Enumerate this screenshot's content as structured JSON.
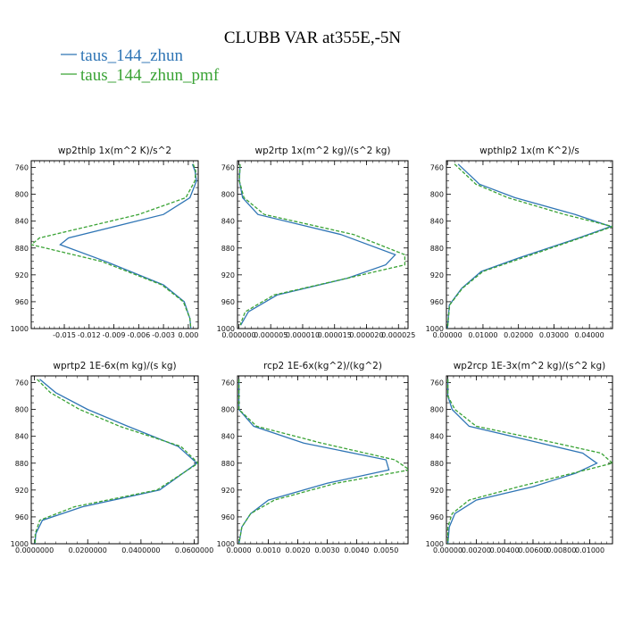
{
  "figure": {
    "title": "CLUBB VAR at355E,-5N",
    "legend": [
      {
        "label": "taus_144_zhun",
        "color": "#2f75b5"
      },
      {
        "label": "taus_144_zhun_pmf",
        "color": "#3aa335"
      }
    ]
  },
  "chart_data": [
    {
      "type": "line",
      "title": "wp2thlp   1x(m^2 K)/s^2",
      "xlim": [
        -0.019,
        0.0012
      ],
      "ylim": [
        1000,
        750
      ],
      "xticks": [
        -0.015,
        -0.012,
        -0.009,
        -0.006,
        -0.003,
        0.0
      ],
      "xticklabels": [
        "-0.015",
        "-0.012",
        "-0.009",
        "-0.006",
        "-0.003",
        "0.000"
      ],
      "yticks": [
        760,
        800,
        840,
        880,
        920,
        960,
        1000
      ],
      "y": [
        755,
        765,
        780,
        805,
        830,
        865,
        875,
        900,
        935,
        960,
        985,
        1000
      ],
      "series": [
        {
          "name": "taus_144_zhun",
          "x": [
            0.0005,
            0.0008,
            0.001,
            0.0002,
            -0.003,
            -0.0145,
            -0.0155,
            -0.01,
            -0.003,
            -0.0005,
            0.0002,
            0.0003
          ]
        },
        {
          "name": "taus_144_zhun_pmf",
          "x": [
            0.0006,
            0.0009,
            0.0008,
            -0.0003,
            -0.006,
            -0.018,
            -0.019,
            -0.0105,
            -0.0032,
            -0.0006,
            0.0002,
            0.0003
          ]
        }
      ]
    },
    {
      "type": "line",
      "title": "wp2rtp   1x(m^2 kg)/(s^2 kg)",
      "xlim": [
        -2e-07,
        2.65e-05
      ],
      "ylim": [
        1000,
        750
      ],
      "xticks": [
        0.0,
        5e-06,
        1e-05,
        1.5e-05,
        2e-05,
        2.5e-05
      ],
      "xticklabels": [
        "0.000000",
        "0.000005",
        "0.000010",
        "0.000015",
        "0.000020",
        "0.000025"
      ],
      "yticks": [
        760,
        800,
        840,
        880,
        920,
        960,
        1000
      ],
      "y": [
        755,
        780,
        805,
        830,
        860,
        890,
        905,
        925,
        950,
        975,
        995
      ],
      "series": [
        {
          "name": "taus_144_zhun",
          "x": [
            2e-07,
            1e-07,
            6e-07,
            3e-06,
            1.6e-05,
            2.45e-05,
            2.3e-05,
            1.7e-05,
            6e-06,
            1.5e-06,
            3e-07
          ]
        },
        {
          "name": "taus_144_zhun_pmf",
          "x": [
            2e-07,
            1e-07,
            8e-07,
            4e-06,
            1.8e-05,
            2.6e-05,
            2.6e-05,
            1.7e-05,
            5.5e-06,
            1e-06,
            2e-07
          ]
        }
      ]
    },
    {
      "type": "line",
      "title": "wpthlp2   1x(m K^2)/s",
      "xlim": [
        -0.0003,
        0.0465
      ],
      "ylim": [
        1000,
        750
      ],
      "xticks": [
        0.0,
        0.01,
        0.02,
        0.03,
        0.04
      ],
      "xticklabels": [
        "0.00000",
        "0.01000",
        "0.02000",
        "0.03000",
        "0.04000"
      ],
      "yticks": [
        760,
        800,
        840,
        880,
        920,
        960,
        1000
      ],
      "y": [
        755,
        765,
        785,
        805,
        830,
        848,
        865,
        895,
        915,
        940,
        965,
        1000
      ],
      "series": [
        {
          "name": "taus_144_zhun",
          "x": [
            0.003,
            0.005,
            0.009,
            0.019,
            0.036,
            0.046,
            0.037,
            0.02,
            0.0095,
            0.004,
            0.0005,
            0.0
          ]
        },
        {
          "name": "taus_144_zhun_pmf",
          "x": [
            0.002,
            0.004,
            0.008,
            0.017,
            0.033,
            0.0465,
            0.0375,
            0.021,
            0.01,
            0.0042,
            0.0006,
            0.0
          ]
        }
      ]
    },
    {
      "type": "line",
      "title": "wprtp2   1E-6x(m kg)/(s kg)",
      "xlim": [
        -0.0012,
        0.0615
      ],
      "ylim": [
        1000,
        750
      ],
      "xticks": [
        0.0,
        0.02,
        0.04,
        0.06
      ],
      "xticklabels": [
        "0.0000000",
        "0.0200000",
        "0.0400000",
        "0.0600000"
      ],
      "yticks": [
        760,
        800,
        840,
        880,
        920,
        960,
        1000
      ],
      "y": [
        755,
        775,
        800,
        825,
        855,
        880,
        920,
        945,
        965,
        985,
        1000
      ],
      "series": [
        {
          "name": "taus_144_zhun",
          "x": [
            0.002,
            0.008,
            0.02,
            0.035,
            0.054,
            0.061,
            0.047,
            0.018,
            0.003,
            0.0005,
            0.0002
          ]
        },
        {
          "name": "taus_144_zhun_pmf",
          "x": [
            0.001,
            0.006,
            0.017,
            0.032,
            0.055,
            0.0615,
            0.046,
            0.015,
            0.002,
            0.0003,
            0.0002
          ]
        }
      ]
    },
    {
      "type": "line",
      "title": "rcp2   1E-6x(kg^2)/(kg^2)",
      "xlim": [
        -5e-05,
        0.00575
      ],
      "ylim": [
        1000,
        750
      ],
      "xticks": [
        0.0,
        0.001,
        0.002,
        0.003,
        0.004,
        0.005
      ],
      "xticklabels": [
        "0.0000",
        "0.0010",
        "0.0020",
        "0.0030",
        "0.0040",
        "0.0050"
      ],
      "yticks": [
        760,
        800,
        840,
        880,
        920,
        960,
        1000
      ],
      "y": [
        755,
        775,
        800,
        825,
        850,
        875,
        890,
        910,
        935,
        955,
        975,
        1000
      ],
      "series": [
        {
          "name": "taus_144_zhun",
          "x": [
            0.0,
            0.0,
            0.0,
            0.0005,
            0.0022,
            0.005,
            0.0051,
            0.003,
            0.001,
            0.0004,
            0.0001,
            0.0
          ]
        },
        {
          "name": "taus_144_zhun_pmf",
          "x": [
            0.0,
            0.0,
            0.0,
            0.0006,
            0.0028,
            0.0053,
            0.0058,
            0.0033,
            0.0012,
            0.0004,
            0.0001,
            0.0
          ]
        }
      ]
    },
    {
      "type": "line",
      "title": "wp2rcp   1E-3x(m^2 kg)/(s^2 kg)",
      "xlim": [
        -0.0001,
        0.0116
      ],
      "ylim": [
        1000,
        750
      ],
      "xticks": [
        0.0,
        0.002,
        0.004,
        0.006,
        0.008,
        0.01
      ],
      "xticklabels": [
        "0.00000",
        "0.00200",
        "0.00400",
        "0.00600",
        "0.00800",
        "0.01000"
      ],
      "yticks": [
        760,
        800,
        840,
        880,
        920,
        960,
        1000
      ],
      "y": [
        755,
        780,
        800,
        825,
        845,
        865,
        880,
        895,
        915,
        935,
        955,
        975,
        1000
      ],
      "series": [
        {
          "name": "taus_144_zhun",
          "x": [
            0.0,
            0.0,
            0.0003,
            0.0015,
            0.0055,
            0.0095,
            0.0105,
            0.009,
            0.006,
            0.002,
            0.0005,
            0.0001,
            0.0
          ]
        },
        {
          "name": "taus_144_zhun_pmf",
          "x": [
            0.0,
            0.0,
            0.0005,
            0.002,
            0.0065,
            0.0108,
            0.0116,
            0.0088,
            0.005,
            0.0015,
            0.0003,
            0.0,
            0.0
          ]
        }
      ]
    }
  ]
}
